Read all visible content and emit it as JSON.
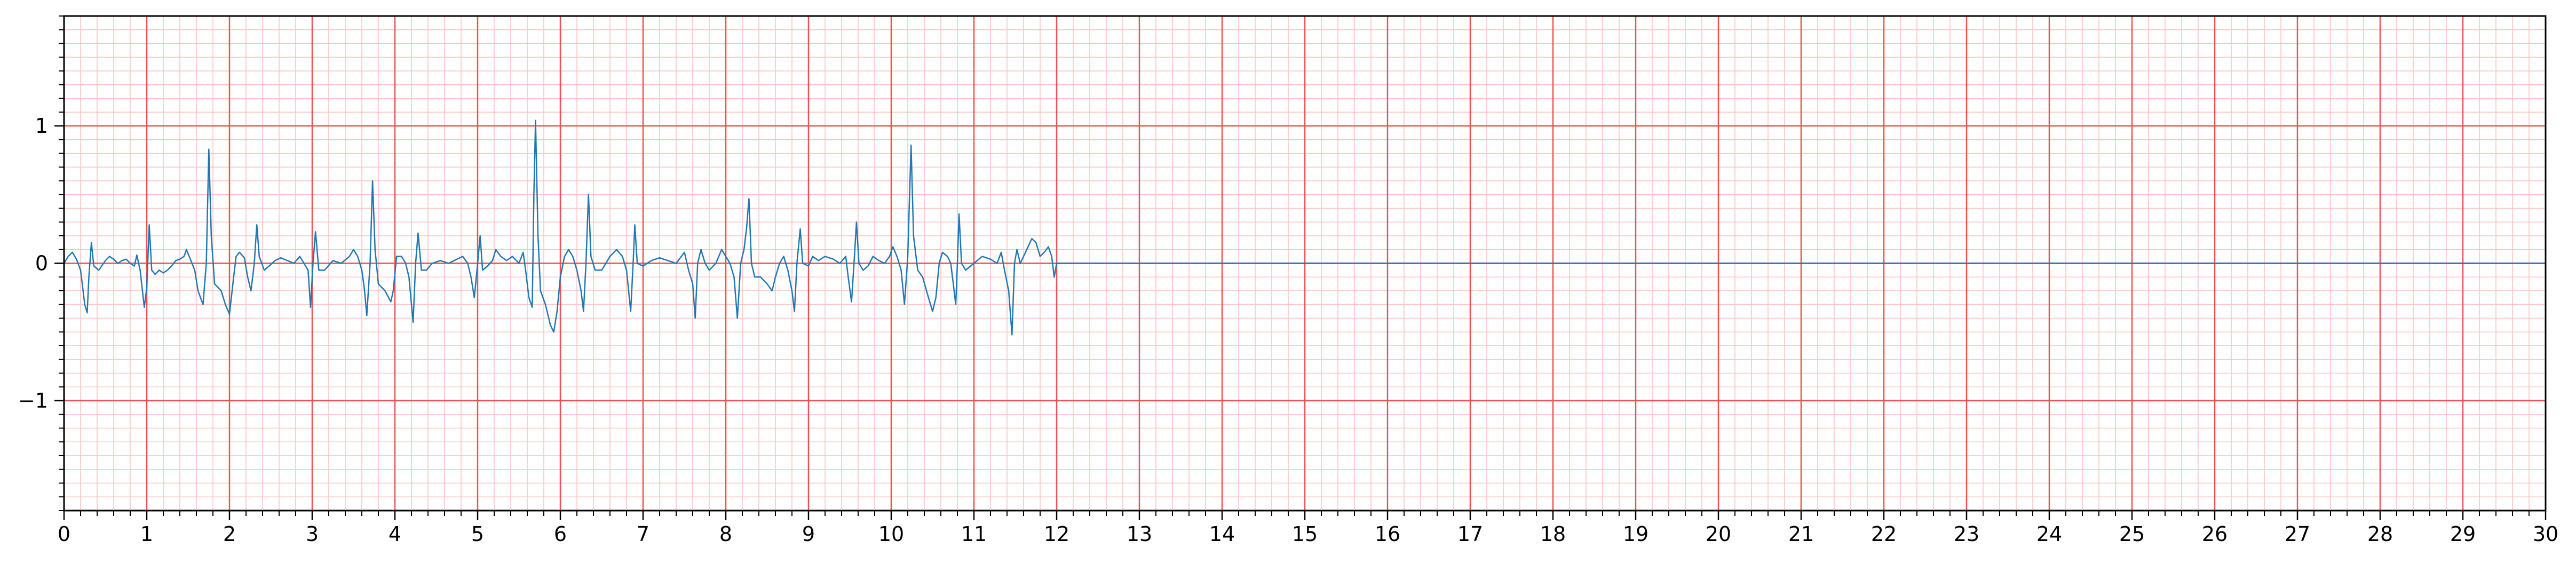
{
  "chart_data": {
    "type": "line",
    "title": "",
    "xlabel": "",
    "ylabel": "",
    "xlim": [
      0,
      30
    ],
    "ylim": [
      -1.8,
      1.8
    ],
    "x_ticks": [
      "0",
      "1",
      "2",
      "3",
      "4",
      "5",
      "6",
      "7",
      "8",
      "9",
      "10",
      "11",
      "12",
      "13",
      "14",
      "15",
      "16",
      "17",
      "18",
      "19",
      "20",
      "21",
      "22",
      "23",
      "24",
      "25",
      "26",
      "27",
      "28",
      "29",
      "30"
    ],
    "y_ticks": [
      {
        "value": 1,
        "label": "1"
      },
      {
        "value": 0,
        "label": "0"
      },
      {
        "value": -1,
        "label": "−1"
      }
    ],
    "grid": {
      "major_x_step": 1,
      "major_y_step": 1,
      "minor_x_step": 0.2,
      "minor_y_step": 0.1,
      "major_color": "#f05050",
      "minor_color": "#ffc0c0"
    },
    "series": [
      {
        "color": "#1f77b4",
        "points": [
          [
            0.0,
            0.0
          ],
          [
            0.05,
            0.05
          ],
          [
            0.1,
            0.08
          ],
          [
            0.15,
            0.03
          ],
          [
            0.2,
            -0.05
          ],
          [
            0.25,
            -0.3
          ],
          [
            0.28,
            -0.36
          ],
          [
            0.3,
            -0.1
          ],
          [
            0.33,
            0.15
          ],
          [
            0.36,
            -0.02
          ],
          [
            0.42,
            -0.05
          ],
          [
            0.5,
            0.02
          ],
          [
            0.55,
            0.05
          ],
          [
            0.6,
            0.03
          ],
          [
            0.65,
            0.0
          ],
          [
            0.7,
            0.02
          ],
          [
            0.75,
            0.03
          ],
          [
            0.8,
            0.0
          ],
          [
            0.85,
            -0.02
          ],
          [
            0.88,
            0.06
          ],
          [
            0.92,
            -0.05
          ],
          [
            0.97,
            -0.32
          ],
          [
            1.0,
            -0.18
          ],
          [
            1.03,
            0.28
          ],
          [
            1.06,
            -0.05
          ],
          [
            1.1,
            -0.08
          ],
          [
            1.15,
            -0.05
          ],
          [
            1.2,
            -0.07
          ],
          [
            1.25,
            -0.05
          ],
          [
            1.3,
            -0.02
          ],
          [
            1.35,
            0.02
          ],
          [
            1.4,
            0.03
          ],
          [
            1.45,
            0.05
          ],
          [
            1.48,
            0.1
          ],
          [
            1.52,
            0.04
          ],
          [
            1.58,
            -0.05
          ],
          [
            1.62,
            -0.2
          ],
          [
            1.68,
            -0.3
          ],
          [
            1.72,
            0.0
          ],
          [
            1.75,
            0.83
          ],
          [
            1.78,
            0.2
          ],
          [
            1.82,
            -0.15
          ],
          [
            1.9,
            -0.2
          ],
          [
            1.95,
            -0.3
          ],
          [
            2.0,
            -0.37
          ],
          [
            2.05,
            -0.1
          ],
          [
            2.08,
            0.05
          ],
          [
            2.12,
            0.08
          ],
          [
            2.18,
            0.04
          ],
          [
            2.22,
            -0.1
          ],
          [
            2.26,
            -0.2
          ],
          [
            2.3,
            0.0
          ],
          [
            2.33,
            0.28
          ],
          [
            2.36,
            0.05
          ],
          [
            2.42,
            -0.05
          ],
          [
            2.48,
            -0.02
          ],
          [
            2.55,
            0.02
          ],
          [
            2.62,
            0.04
          ],
          [
            2.7,
            0.02
          ],
          [
            2.78,
            0.0
          ],
          [
            2.85,
            0.05
          ],
          [
            2.9,
            0.0
          ],
          [
            2.95,
            -0.05
          ],
          [
            2.98,
            -0.32
          ],
          [
            3.01,
            0.0
          ],
          [
            3.04,
            0.23
          ],
          [
            3.08,
            -0.05
          ],
          [
            3.15,
            -0.05
          ],
          [
            3.25,
            0.02
          ],
          [
            3.35,
            0.0
          ],
          [
            3.45,
            0.05
          ],
          [
            3.5,
            0.1
          ],
          [
            3.55,
            0.05
          ],
          [
            3.6,
            -0.05
          ],
          [
            3.63,
            -0.18
          ],
          [
            3.66,
            -0.38
          ],
          [
            3.7,
            0.0
          ],
          [
            3.73,
            0.6
          ],
          [
            3.76,
            0.1
          ],
          [
            3.8,
            -0.15
          ],
          [
            3.88,
            -0.2
          ],
          [
            3.95,
            -0.28
          ],
          [
            3.98,
            -0.2
          ],
          [
            4.02,
            0.05
          ],
          [
            4.08,
            0.05
          ],
          [
            4.13,
            0.0
          ],
          [
            4.17,
            -0.1
          ],
          [
            4.22,
            -0.43
          ],
          [
            4.25,
            0.0
          ],
          [
            4.28,
            0.22
          ],
          [
            4.32,
            -0.05
          ],
          [
            4.38,
            -0.05
          ],
          [
            4.45,
            0.0
          ],
          [
            4.55,
            0.02
          ],
          [
            4.65,
            0.0
          ],
          [
            4.75,
            0.03
          ],
          [
            4.82,
            0.05
          ],
          [
            4.88,
            0.0
          ],
          [
            4.92,
            -0.1
          ],
          [
            4.96,
            -0.25
          ],
          [
            5.0,
            0.0
          ],
          [
            5.03,
            0.2
          ],
          [
            5.06,
            -0.05
          ],
          [
            5.12,
            -0.02
          ],
          [
            5.18,
            0.02
          ],
          [
            5.22,
            0.1
          ],
          [
            5.28,
            0.05
          ],
          [
            5.35,
            0.02
          ],
          [
            5.42,
            0.05
          ],
          [
            5.5,
            0.0
          ],
          [
            5.55,
            0.08
          ],
          [
            5.58,
            -0.05
          ],
          [
            5.62,
            -0.25
          ],
          [
            5.66,
            -0.32
          ],
          [
            5.68,
            0.5
          ],
          [
            5.7,
            1.04
          ],
          [
            5.73,
            0.2
          ],
          [
            5.76,
            -0.2
          ],
          [
            5.82,
            -0.3
          ],
          [
            5.88,
            -0.45
          ],
          [
            5.92,
            -0.5
          ],
          [
            5.96,
            -0.35
          ],
          [
            6.0,
            -0.1
          ],
          [
            6.05,
            0.05
          ],
          [
            6.1,
            0.1
          ],
          [
            6.15,
            0.05
          ],
          [
            6.2,
            -0.05
          ],
          [
            6.25,
            -0.2
          ],
          [
            6.28,
            -0.35
          ],
          [
            6.31,
            0.0
          ],
          [
            6.34,
            0.5
          ],
          [
            6.37,
            0.05
          ],
          [
            6.42,
            -0.05
          ],
          [
            6.5,
            -0.05
          ],
          [
            6.6,
            0.05
          ],
          [
            6.68,
            0.1
          ],
          [
            6.75,
            0.05
          ],
          [
            6.8,
            -0.05
          ],
          [
            6.85,
            -0.35
          ],
          [
            6.88,
            0.0
          ],
          [
            6.9,
            0.28
          ],
          [
            6.93,
            0.0
          ],
          [
            7.0,
            -0.02
          ],
          [
            7.1,
            0.02
          ],
          [
            7.2,
            0.04
          ],
          [
            7.3,
            0.02
          ],
          [
            7.4,
            0.0
          ],
          [
            7.5,
            0.08
          ],
          [
            7.55,
            -0.05
          ],
          [
            7.6,
            -0.15
          ],
          [
            7.63,
            -0.4
          ],
          [
            7.66,
            0.0
          ],
          [
            7.7,
            0.1
          ],
          [
            7.75,
            0.0
          ],
          [
            7.8,
            -0.05
          ],
          [
            7.88,
            0.0
          ],
          [
            7.95,
            0.1
          ],
          [
            8.0,
            0.05
          ],
          [
            8.05,
            0.0
          ],
          [
            8.1,
            -0.1
          ],
          [
            8.14,
            -0.4
          ],
          [
            8.18,
            0.0
          ],
          [
            8.22,
            0.1
          ],
          [
            8.25,
            0.25
          ],
          [
            8.28,
            0.47
          ],
          [
            8.31,
            0.0
          ],
          [
            8.35,
            -0.1
          ],
          [
            8.42,
            -0.1
          ],
          [
            8.5,
            -0.15
          ],
          [
            8.56,
            -0.2
          ],
          [
            8.6,
            -0.1
          ],
          [
            8.65,
            0.0
          ],
          [
            8.7,
            0.05
          ],
          [
            8.75,
            -0.05
          ],
          [
            8.8,
            -0.2
          ],
          [
            8.83,
            -0.35
          ],
          [
            8.86,
            0.0
          ],
          [
            8.9,
            0.25
          ],
          [
            8.93,
            0.0
          ],
          [
            9.0,
            -0.02
          ],
          [
            9.05,
            0.05
          ],
          [
            9.12,
            0.02
          ],
          [
            9.2,
            0.05
          ],
          [
            9.3,
            0.03
          ],
          [
            9.38,
            0.0
          ],
          [
            9.45,
            0.05
          ],
          [
            9.48,
            -0.1
          ],
          [
            9.52,
            -0.28
          ],
          [
            9.55,
            0.0
          ],
          [
            9.58,
            0.3
          ],
          [
            9.61,
            0.0
          ],
          [
            9.66,
            -0.05
          ],
          [
            9.72,
            -0.02
          ],
          [
            9.78,
            0.05
          ],
          [
            9.85,
            0.02
          ],
          [
            9.92,
            0.0
          ],
          [
            9.98,
            0.05
          ],
          [
            10.02,
            0.12
          ],
          [
            10.07,
            0.05
          ],
          [
            10.12,
            -0.05
          ],
          [
            10.16,
            -0.3
          ],
          [
            10.2,
            0.05
          ],
          [
            10.24,
            0.86
          ],
          [
            10.27,
            0.2
          ],
          [
            10.32,
            -0.05
          ],
          [
            10.38,
            -0.1
          ],
          [
            10.45,
            -0.25
          ],
          [
            10.5,
            -0.35
          ],
          [
            10.54,
            -0.25
          ],
          [
            10.58,
            0.0
          ],
          [
            10.62,
            0.08
          ],
          [
            10.68,
            0.05
          ],
          [
            10.72,
            0.0
          ],
          [
            10.75,
            -0.15
          ],
          [
            10.78,
            -0.3
          ],
          [
            10.8,
            0.0
          ],
          [
            10.82,
            0.36
          ],
          [
            10.85,
            0.0
          ],
          [
            10.9,
            -0.05
          ],
          [
            11.0,
            0.0
          ],
          [
            11.1,
            0.05
          ],
          [
            11.2,
            0.03
          ],
          [
            11.28,
            0.0
          ],
          [
            11.33,
            0.08
          ],
          [
            11.37,
            -0.05
          ],
          [
            11.42,
            -0.2
          ],
          [
            11.46,
            -0.52
          ],
          [
            11.49,
            0.0
          ],
          [
            11.52,
            0.1
          ],
          [
            11.56,
            0.0
          ],
          [
            11.6,
            0.05
          ],
          [
            11.7,
            0.18
          ],
          [
            11.75,
            0.15
          ],
          [
            11.8,
            0.05
          ],
          [
            11.85,
            0.08
          ],
          [
            11.9,
            0.12
          ],
          [
            11.94,
            0.05
          ],
          [
            11.97,
            -0.1
          ],
          [
            12.0,
            0.0
          ],
          [
            30.0,
            0.0
          ]
        ]
      }
    ]
  }
}
